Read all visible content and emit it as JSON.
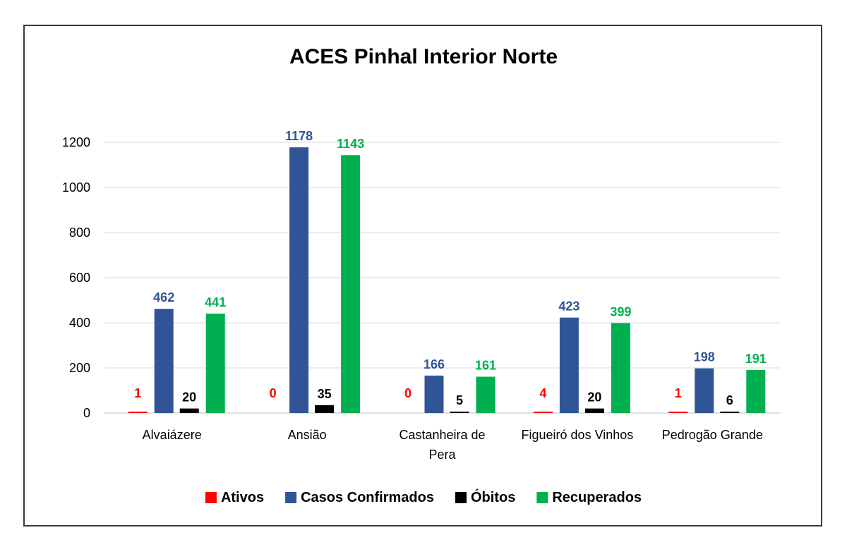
{
  "chart_data": {
    "type": "bar",
    "title": "ACES Pinhal Interior Norte",
    "xlabel": "",
    "ylabel": "",
    "ylim": [
      0,
      1200
    ],
    "yticks": [
      0,
      200,
      400,
      600,
      800,
      1000,
      1200
    ],
    "grid": true,
    "legend_position": "bottom",
    "categories": [
      [
        "Alvaiázere"
      ],
      [
        "Ansião"
      ],
      [
        "Castanheira de",
        "Pera"
      ],
      [
        "Figueiró dos Vinhos"
      ],
      [
        "Pedrogão Grande"
      ]
    ],
    "series": [
      {
        "name": "Ativos",
        "color": "#ff0000",
        "label_color": "#ff0000",
        "values": [
          1,
          0,
          0,
          4,
          1
        ]
      },
      {
        "name": "Casos Confirmados",
        "color": "#2f5597",
        "label_color": "#2f5597",
        "values": [
          462,
          1178,
          166,
          423,
          198
        ]
      },
      {
        "name": "Óbitos",
        "color": "#000000",
        "label_color": "#000000",
        "values": [
          20,
          35,
          5,
          20,
          6
        ]
      },
      {
        "name": "Recuperados",
        "color": "#00b050",
        "label_color": "#00b050",
        "values": [
          441,
          1143,
          161,
          399,
          191
        ]
      }
    ]
  }
}
